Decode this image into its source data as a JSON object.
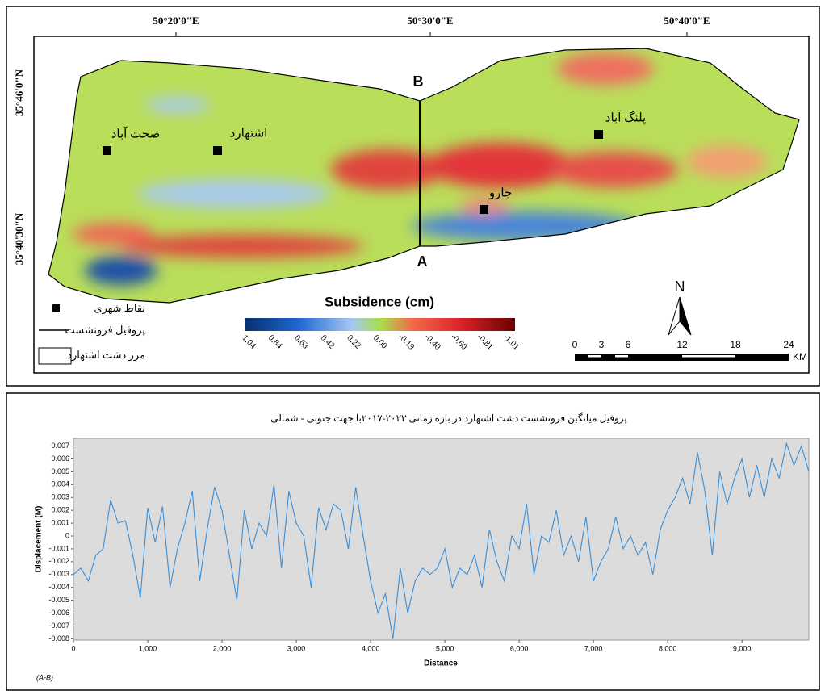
{
  "map": {
    "lon_labels": [
      "50°20'0\"E",
      "50°30'0\"E",
      "50°40'0\"E"
    ],
    "lat_labels": [
      "35°46'0\"N",
      "35°40'30\"N"
    ],
    "profile_labels": [
      "B",
      "A"
    ],
    "cities": [
      "صحت آباد",
      "اشتهارد",
      "پلنگ آباد",
      "جارو"
    ],
    "legend": [
      "نقاط شهری",
      "پروفیل فرونشست",
      "مرز دشت اشتهارد"
    ],
    "colorbar_title": "Subsidence (cm)",
    "colorbar_ticks": [
      "1.04",
      "0.84",
      "0.63",
      "0.42",
      "0.22",
      "0.00",
      "-0.19",
      "-0.40",
      "-0.60",
      "-0.81",
      "-1.01"
    ],
    "north": "N",
    "scale_ticks": [
      "0",
      "3",
      "6",
      "12",
      "18",
      "24"
    ],
    "scale_unit": "KM"
  },
  "chart_data": {
    "type": "line",
    "title": "پروفیل میانگین فرونشست دشت اشتهارد در بازه زمانی ۲۰۲۳-۲۰۱۷با جهت جنوبی - شمالی",
    "x_label": "Distance",
    "y_label": "Displacement (M)",
    "note": "(A-B)",
    "xlim": [
      0,
      9900
    ],
    "ylim": [
      -0.0081,
      0.0076
    ],
    "xticks": [
      0,
      {
        "value": 1000,
        "label": "1,000"
      },
      {
        "value": 2000,
        "label": "2,000"
      },
      {
        "value": 3000,
        "label": "3,000"
      },
      {
        "value": 4000,
        "label": "4,000"
      },
      {
        "value": 5000,
        "label": "5,000"
      },
      {
        "value": 6000,
        "label": "6,000"
      },
      {
        "value": 7000,
        "label": "7,000"
      },
      {
        "value": 8000,
        "label": "8,000"
      },
      {
        "value": 9000,
        "label": "9,000"
      }
    ],
    "yticks": [
      -0.008,
      -0.007,
      -0.006,
      -0.005,
      -0.004,
      -0.003,
      -0.002,
      -0.001,
      0,
      0.001,
      0.002,
      0.003,
      0.004,
      0.005,
      0.006,
      0.007
    ],
    "series": [
      {
        "color": "#3a8fd6",
        "x": [
          0,
          100,
          200,
          300,
          400,
          500,
          600,
          700,
          800,
          900,
          1000,
          1100,
          1200,
          1300,
          1400,
          1500,
          1600,
          1700,
          1800,
          1900,
          2000,
          2100,
          2200,
          2300,
          2400,
          2500,
          2600,
          2700,
          2800,
          2900,
          3000,
          3100,
          3200,
          3300,
          3400,
          3500,
          3600,
          3700,
          3800,
          3900,
          4000,
          4100,
          4200,
          4300,
          4400,
          4500,
          4600,
          4700,
          4800,
          4900,
          5000,
          5100,
          5200,
          5300,
          5400,
          5500,
          5600,
          5700,
          5800,
          5900,
          6000,
          6100,
          6200,
          6300,
          6400,
          6500,
          6600,
          6700,
          6800,
          6900,
          7000,
          7100,
          7200,
          7300,
          7400,
          7500,
          7600,
          7700,
          7800,
          7900,
          8000,
          8100,
          8200,
          8300,
          8400,
          8500,
          8600,
          8700,
          8800,
          8900,
          9000,
          9100,
          9200,
          9300,
          9400,
          9500,
          9600,
          9700,
          9800,
          9900
        ],
        "values": [
          -0.003,
          -0.0025,
          -0.0035,
          -0.0015,
          -0.001,
          0.0028,
          0.001,
          0.0012,
          -0.0015,
          -0.0048,
          0.0022,
          -0.0005,
          0.0023,
          -0.004,
          -0.001,
          0.001,
          0.0035,
          -0.0035,
          0.0005,
          0.0038,
          0.002,
          -0.0015,
          -0.005,
          0.002,
          -0.001,
          0.001,
          0,
          0.004,
          -0.0025,
          0.0035,
          0.001,
          0,
          -0.004,
          0.0022,
          0.0005,
          0.0025,
          0.002,
          -0.001,
          0.0038,
          0,
          -0.0035,
          -0.006,
          -0.0045,
          -0.008,
          -0.0025,
          -0.006,
          -0.0035,
          -0.0025,
          -0.003,
          -0.0025,
          -0.001,
          -0.004,
          -0.0025,
          -0.003,
          -0.0015,
          -0.004,
          0.0005,
          -0.002,
          -0.0035,
          0,
          -0.001,
          0.0025,
          -0.003,
          0,
          -0.0005,
          0.002,
          -0.0015,
          0,
          -0.002,
          0.0015,
          -0.0035,
          -0.002,
          -0.001,
          0.0015,
          -0.001,
          0,
          -0.0015,
          -0.0005,
          -0.003,
          0.0005,
          0.002,
          0.003,
          0.0045,
          0.0025,
          0.0065,
          0.0035,
          -0.0015,
          0.005,
          0.0025,
          0.0045,
          0.006,
          0.003,
          0.0055,
          0.003,
          0.006,
          0.0045,
          0.0072,
          0.0055,
          0.007,
          0.005
        ]
      }
    ]
  }
}
